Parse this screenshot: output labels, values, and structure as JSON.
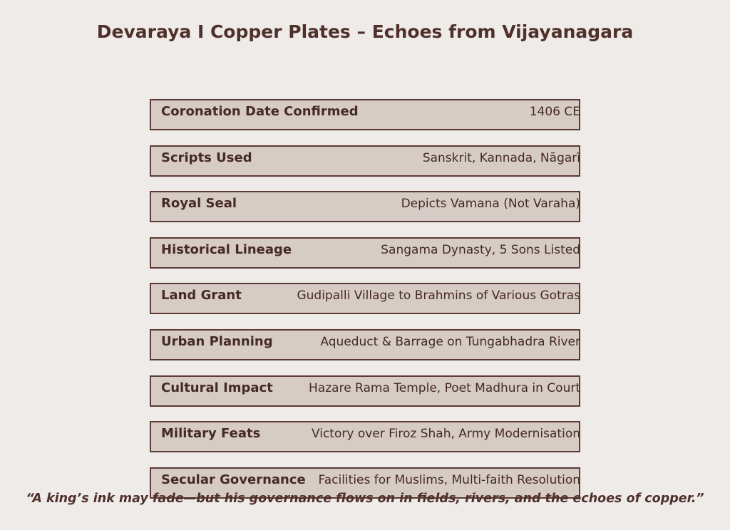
{
  "title": "Devaraya I Copper Plates – Echoes from Vijayanagara",
  "rows": [
    {
      "label": "Coronation Date Confirmed",
      "value": "1406 CE"
    },
    {
      "label": "Scripts Used",
      "value": "Sanskrit, Kannada, Nāgarī"
    },
    {
      "label": "Royal Seal",
      "value": "Depicts Vamana (Not Varaha)"
    },
    {
      "label": "Historical Lineage",
      "value": "Sangama Dynasty, 5 Sons Listed"
    },
    {
      "label": "Land Grant",
      "value": "Gudipalli Village to Brahmins of Various Gotras"
    },
    {
      "label": "Urban Planning",
      "value": "Aqueduct & Barrage on Tungabhadra River"
    },
    {
      "label": "Cultural Impact",
      "value": "Hazare Rama Temple, Poet Madhura in Court"
    },
    {
      "label": "Military Feats",
      "value": "Victory over Firoz Shah, Army Modernisation"
    },
    {
      "label": "Secular Governance",
      "value": "Facilities for Muslims, Multi-faith Resolution"
    }
  ],
  "quote": "“A king’s ink may fade—but his governance flows on in fields, rivers, and the echoes of copper.”",
  "colors": {
    "background": "#efebe8",
    "box_fill": "#d7cbc6",
    "box_border": "#5a3a33",
    "text": "#4a2e2a"
  }
}
